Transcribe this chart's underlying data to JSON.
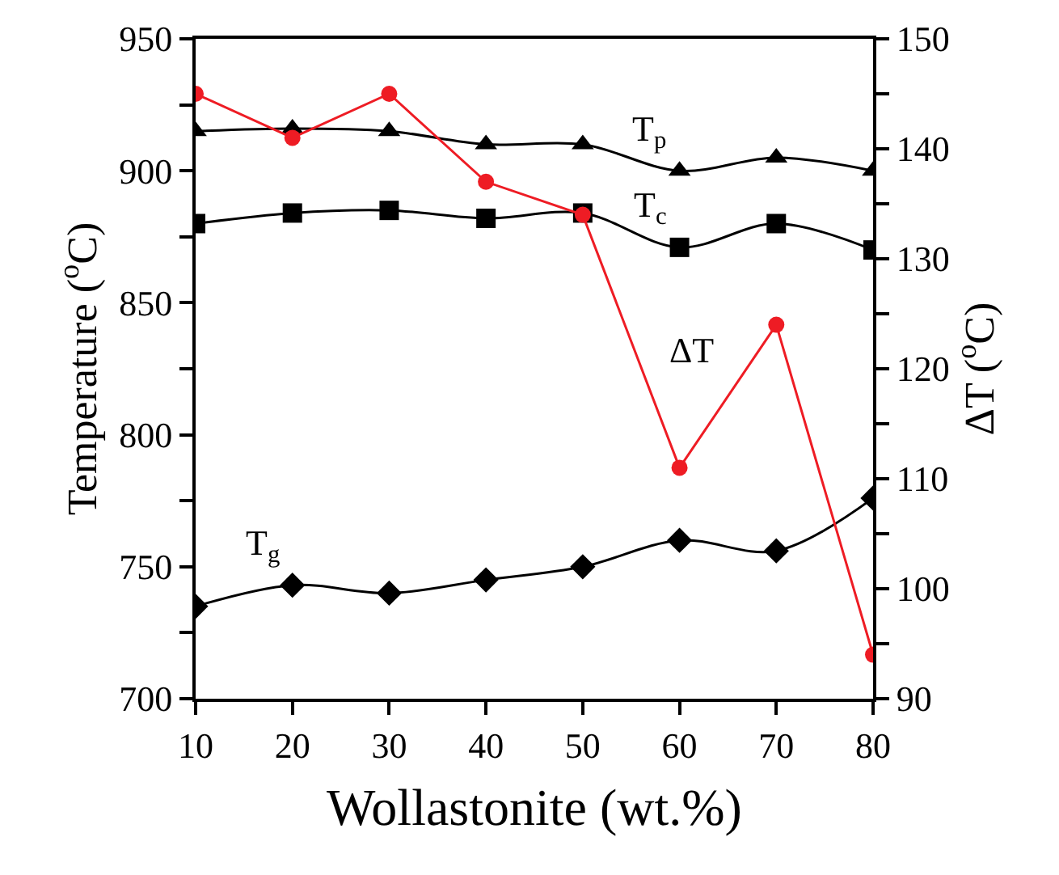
{
  "chart_data": {
    "type": "line",
    "x": [
      10,
      20,
      30,
      40,
      50,
      60,
      70,
      80
    ],
    "xlabel": "Wollastonite (wt.%)",
    "ylabel": "Temperature ($^{o}$C)",
    "y2label": "ΔT ($^{o}$C)",
    "series": [
      {
        "color": "#000000",
        "marker": "triangle",
        "values": [
          915,
          916,
          915,
          910,
          910,
          900,
          905,
          900
        ]
      },
      {
        "color": "#000000",
        "marker": "square",
        "values": [
          880,
          884,
          885,
          882,
          884,
          871,
          880,
          870
        ]
      },
      {
        "color": "#000000",
        "marker": "diamond",
        "values": [
          735,
          743,
          740,
          745,
          750,
          760,
          756,
          776
        ]
      },
      {
        "color": "#ee1c24",
        "marker": "circle",
        "axis": "y2",
        "values": [
          145,
          141,
          145,
          137,
          134,
          111,
          124,
          94
        ]
      }
    ],
    "annotations": [
      {
        "text": "T$_{p}$",
        "x": 60,
        "y": 900
      },
      {
        "text": "T$_{c}$",
        "x": 60,
        "y": 871
      },
      {
        "text": "T$_{g}$",
        "x": 20,
        "y": 743
      },
      {
        "text": "ΔT",
        "x": 65,
        "y": 818
      }
    ],
    "xlim": [
      10,
      80
    ],
    "xticks": [
      10,
      20,
      30,
      40,
      50,
      60,
      70,
      80
    ],
    "ylim": [
      700,
      950
    ],
    "yticks": [
      700,
      {
        "value": 725,
        "label": null
      },
      750,
      {
        "value": 775,
        "label": null
      },
      800,
      {
        "value": 825,
        "label": null
      },
      850,
      {
        "value": 875,
        "label": null
      },
      900,
      {
        "value": 925,
        "label": null
      },
      950
    ],
    "y2lim": [
      90,
      150
    ],
    "y2ticks": [
      90,
      {
        "value": 95,
        "label": null
      },
      100,
      {
        "value": 105,
        "label": null
      },
      110,
      {
        "value": 115,
        "label": null
      },
      120,
      {
        "value": 125,
        "label": null
      },
      130,
      {
        "value": 135,
        "label": null
      },
      140,
      {
        "value": 145,
        "label": null
      },
      150
    ]
  }
}
